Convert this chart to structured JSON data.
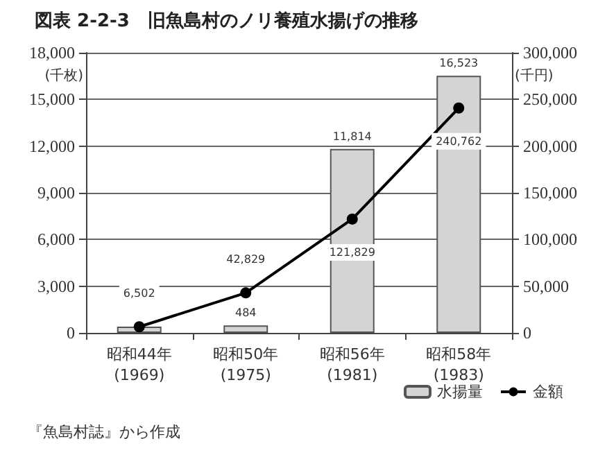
{
  "chart_data": {
    "type": "bar",
    "title": "図表 2-2-3　旧魚島村のノリ養殖水揚げの推移",
    "categories": [
      "昭和44年\n(1969)",
      "昭和50年\n(1975)",
      "昭和56年\n(1981)",
      "昭和58年\n(1983)"
    ],
    "series": [
      {
        "name": "水揚量",
        "color": "#d4d4d4",
        "values": [
          400,
          484,
          11814,
          16523
        ],
        "value_labels": [
          null,
          "484",
          "11,814",
          "16,523"
        ]
      },
      {
        "name": "金額",
        "type": "line",
        "axis": "y2",
        "color": "#000000",
        "values": [
          6502,
          42829,
          121829,
          240762
        ],
        "value_labels": [
          "6,502",
          "42,829",
          "121,829",
          "240,762"
        ]
      }
    ],
    "ylabel": "(千枚)",
    "y2label": "(千円)",
    "ylim": [
      0,
      18000
    ],
    "yticks": [
      0,
      {
        "value": 3000,
        "label": "3,000"
      },
      {
        "value": 6000,
        "label": "6,000"
      },
      {
        "value": 9000,
        "label": "9,000"
      },
      {
        "value": 12000,
        "label": "12,000"
      },
      {
        "value": 15000,
        "label": "15,000"
      },
      {
        "value": 18000,
        "label": "18,000"
      }
    ],
    "y2lim": [
      0,
      300000
    ],
    "y2ticks": [
      0,
      {
        "value": 50000,
        "label": "50,000"
      },
      {
        "value": 100000,
        "label": "100,000"
      },
      {
        "value": 150000,
        "label": "150,000"
      },
      {
        "value": 200000,
        "label": "200,000"
      },
      {
        "value": 250000,
        "label": "250,000"
      },
      {
        "value": 300000,
        "label": "300,000"
      }
    ],
    "grid": "y",
    "legend": "bottom right",
    "marker": "circle",
    "line_style": "solid",
    "annotations": [
      "『魚島村誌』から作成"
    ]
  }
}
